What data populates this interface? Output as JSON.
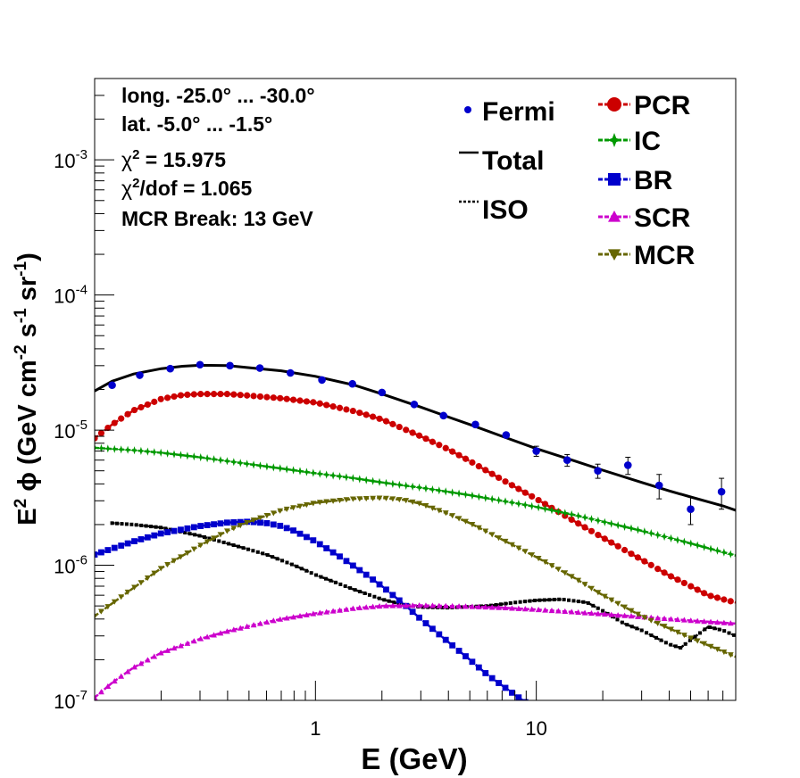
{
  "chart_data": {
    "type": "line",
    "x_scale": "log",
    "y_scale": "log",
    "xlim": [
      0.1,
      80
    ],
    "ylim": [
      1e-07,
      0.004
    ],
    "xlabel": "E (GeV)",
    "ylabel_parts": {
      "a": "E",
      "a_sup": "2",
      "b": " ϕ (GeV cm",
      "b_sup": "-2",
      "c": " s",
      "c_sup": "-1",
      "d": " sr",
      "d_sup": "-1",
      "e": ")"
    },
    "x_tick_labels": [
      {
        "value": 1,
        "label": "1"
      },
      {
        "value": 10,
        "label": "10"
      }
    ],
    "y_tick_labels": [
      {
        "value": 1e-07,
        "base": "10",
        "exp": "-7"
      },
      {
        "value": 1e-06,
        "base": "10",
        "exp": "-6"
      },
      {
        "value": 1e-05,
        "base": "10",
        "exp": "-5"
      },
      {
        "value": 0.0001,
        "base": "10",
        "exp": "-4"
      },
      {
        "value": 0.001,
        "base": "10",
        "exp": "-3"
      }
    ],
    "annotations": {
      "line1": "long. -25.0° ... -30.0°",
      "line2": "lat. -5.0° ... -1.5°",
      "chi2_sym": "χ",
      "chi2_sup": "2",
      "chi2_val": " = 15.975",
      "chi2dof_sym": "χ",
      "chi2dof_sup": "2",
      "chi2dof_val": "/dof = 1.065",
      "line5": "MCR Break: 13 GeV"
    },
    "legend_placement": "top-right",
    "fermi": {
      "name": "Fermi",
      "color": "#0000cc",
      "points": [
        {
          "x": 0.12,
          "y": 2.15e-05,
          "err": 0
        },
        {
          "x": 0.16,
          "y": 2.55e-05,
          "err": 0
        },
        {
          "x": 0.22,
          "y": 2.85e-05,
          "err": 0
        },
        {
          "x": 0.3,
          "y": 3.05e-05,
          "err": 0
        },
        {
          "x": 0.41,
          "y": 3e-05,
          "err": 0
        },
        {
          "x": 0.56,
          "y": 2.88e-05,
          "err": 0
        },
        {
          "x": 0.77,
          "y": 2.65e-05,
          "err": 0
        },
        {
          "x": 1.07,
          "y": 2.35e-05,
          "err": 0
        },
        {
          "x": 1.47,
          "y": 2.2e-05,
          "err": 0
        },
        {
          "x": 2.0,
          "y": 1.9e-05,
          "err": 0
        },
        {
          "x": 2.8,
          "y": 1.55e-05,
          "err": 0
        },
        {
          "x": 3.8,
          "y": 1.28e-05,
          "err": 0
        },
        {
          "x": 5.3,
          "y": 1.1e-05,
          "err": 0
        },
        {
          "x": 7.3,
          "y": 9.2e-06,
          "err": 0
        },
        {
          "x": 10.0,
          "y": 7e-06,
          "err": 6e-07
        },
        {
          "x": 13.8,
          "y": 6e-06,
          "err": 6e-07
        },
        {
          "x": 19.0,
          "y": 5e-06,
          "err": 6e-07
        },
        {
          "x": 26.0,
          "y": 5.5e-06,
          "err": 8e-07
        },
        {
          "x": 36.0,
          "y": 3.9e-06,
          "err": 8e-07
        },
        {
          "x": 50.0,
          "y": 2.6e-06,
          "err": 6e-07
        },
        {
          "x": 69.0,
          "y": 3.5e-06,
          "err": 9e-07
        }
      ]
    },
    "series": [
      {
        "name": "Total",
        "color": "#000000",
        "style": "solid",
        "marker": "none",
        "x": [
          0.1,
          0.12,
          0.15,
          0.2,
          0.25,
          0.3,
          0.4,
          0.5,
          0.7,
          1,
          1.5,
          2,
          3,
          4,
          5,
          7,
          10,
          15,
          20,
          30,
          40,
          50,
          60,
          70,
          80
        ],
        "y": [
          1.95e-05,
          2.3e-05,
          2.6e-05,
          2.85e-05,
          2.97e-05,
          3.02e-05,
          3e-05,
          2.9e-05,
          2.75e-05,
          2.5e-05,
          2.15e-05,
          1.85e-05,
          1.48e-05,
          1.25e-05,
          1.1e-05,
          9e-06,
          7.3e-06,
          5.9e-06,
          5.05e-06,
          4.1e-06,
          3.55e-06,
          3.2e-06,
          2.95e-06,
          2.75e-06,
          2.55e-06
        ]
      },
      {
        "name": "ISO",
        "color": "#000000",
        "style": "dotted",
        "marker": "square-small",
        "x": [
          0.12,
          0.15,
          0.2,
          0.3,
          0.4,
          0.6,
          0.8,
          1,
          1.5,
          2,
          2.5,
          3,
          4,
          6,
          8,
          10,
          13,
          17,
          20,
          25,
          30,
          35,
          40,
          45,
          50,
          60,
          70,
          80
        ],
        "y": [
          2.05e-06,
          2e-06,
          1.9e-06,
          1.65e-06,
          1.45e-06,
          1.2e-06,
          1e-06,
          8.5e-07,
          6.6e-07,
          5.6e-07,
          5.1e-07,
          4.9e-07,
          4.85e-07,
          5e-07,
          5.3e-07,
          5.5e-07,
          5.6e-07,
          5.3e-07,
          4.6e-07,
          3.7e-07,
          3.3e-07,
          2.9e-07,
          2.6e-07,
          2.45e-07,
          2.8e-07,
          3.5e-07,
          3.3e-07,
          3e-07
        ]
      },
      {
        "name": "PCR",
        "color": "#cc0000",
        "style": "dashed",
        "marker": "circle",
        "x": [
          0.1,
          0.12,
          0.15,
          0.2,
          0.25,
          0.3,
          0.4,
          0.5,
          0.7,
          1,
          1.5,
          2,
          3,
          4,
          5,
          7,
          10,
          15,
          20,
          30,
          40,
          50,
          60,
          70,
          80
        ],
        "y": [
          8.7e-06,
          1.1e-05,
          1.4e-05,
          1.7e-05,
          1.82e-05,
          1.85e-05,
          1.85e-05,
          1.8e-05,
          1.72e-05,
          1.6e-05,
          1.38e-05,
          1.2e-05,
          9e-06,
          7.2e-06,
          5.9e-06,
          4.3e-06,
          3.1e-06,
          2.1e-06,
          1.6e-06,
          1.1e-06,
          8.4e-07,
          7e-07,
          6e-07,
          5.6e-07,
          5.3e-07
        ]
      },
      {
        "name": "IC",
        "color": "#009900",
        "style": "dashed",
        "marker": "star",
        "x": [
          0.1,
          0.15,
          0.2,
          0.3,
          0.5,
          0.7,
          1,
          1.5,
          2,
          3,
          5,
          7,
          10,
          15,
          20,
          30,
          50,
          80
        ],
        "y": [
          7.4e-06,
          7.1e-06,
          6.8e-06,
          6.3e-06,
          5.6e-06,
          5.2e-06,
          4.8e-06,
          4.4e-06,
          4.1e-06,
          3.75e-06,
          3.3e-06,
          3e-06,
          2.7e-06,
          2.35e-06,
          2.1e-06,
          1.8e-06,
          1.45e-06,
          1.18e-06
        ]
      },
      {
        "name": "BR",
        "color": "#0000cc",
        "style": "dashed",
        "marker": "square",
        "x": [
          0.1,
          0.15,
          0.2,
          0.3,
          0.4,
          0.5,
          0.6,
          0.7,
          0.8,
          1,
          1.3,
          1.7,
          2,
          2.5,
          3,
          4,
          5,
          6,
          8,
          10
        ],
        "y": [
          1.2e-06,
          1.5e-06,
          1.72e-06,
          1.95e-06,
          2.07e-06,
          2.1e-06,
          2.05e-06,
          1.95e-06,
          1.8e-06,
          1.5e-06,
          1.15e-06,
          8.5e-07,
          7e-07,
          5.2e-07,
          4e-07,
          2.7e-07,
          2e-07,
          1.55e-07,
          1.1e-07,
          8.5e-08
        ]
      },
      {
        "name": "SCR",
        "color": "#cc00cc",
        "style": "dashed",
        "marker": "triangle-up",
        "x": [
          0.1,
          0.12,
          0.15,
          0.2,
          0.3,
          0.4,
          0.5,
          0.7,
          1,
          1.5,
          2,
          3,
          5,
          7,
          10,
          15,
          20,
          30,
          50,
          80
        ],
        "y": [
          1.05e-07,
          1.35e-07,
          1.75e-07,
          2.25e-07,
          2.85e-07,
          3.25e-07,
          3.55e-07,
          4e-07,
          4.4e-07,
          4.8e-07,
          5e-07,
          5.05e-07,
          4.95e-07,
          4.85e-07,
          4.7e-07,
          4.5e-07,
          4.35e-07,
          4.15e-07,
          3.9e-07,
          3.7e-07
        ]
      },
      {
        "name": "MCR",
        "color": "#666600",
        "style": "dashed",
        "marker": "triangle-down",
        "x": [
          0.1,
          0.15,
          0.2,
          0.3,
          0.4,
          0.5,
          0.7,
          1,
          1.5,
          2,
          2.5,
          3,
          4,
          5,
          7,
          10,
          15,
          20,
          30,
          50,
          80
        ],
        "y": [
          4.2e-07,
          6.8e-07,
          9.5e-07,
          1.4e-06,
          1.8e-06,
          2.1e-06,
          2.55e-06,
          2.9e-06,
          3.1e-06,
          3.15e-06,
          3.05e-06,
          2.85e-06,
          2.4e-06,
          2.05e-06,
          1.55e-06,
          1.15e-06,
          8e-07,
          6e-07,
          4.2e-07,
          2.9e-07,
          2.1e-07
        ]
      }
    ],
    "legend": {
      "left": [
        "Fermi",
        "Total",
        "ISO"
      ],
      "right": [
        "PCR",
        "IC",
        "BR",
        "SCR",
        "MCR"
      ]
    }
  }
}
